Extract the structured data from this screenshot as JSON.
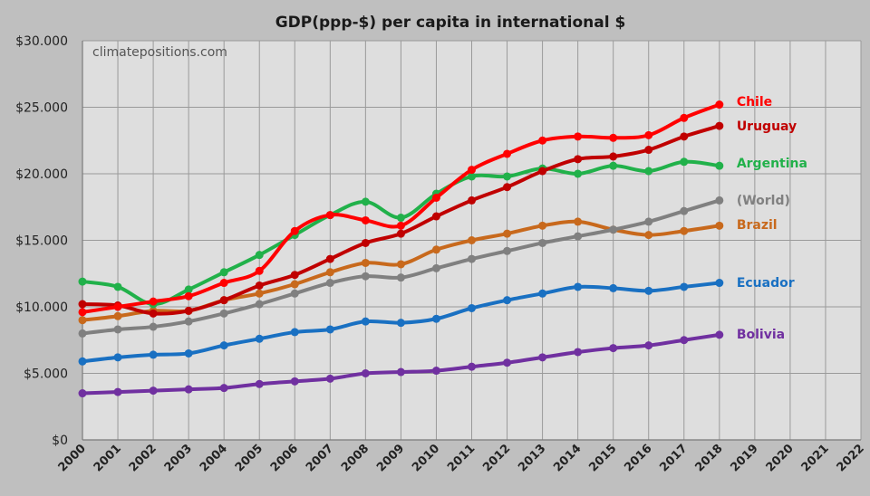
{
  "chart_data": {
    "type": "line",
    "title": "GDP(ppp-$) per capita in international $",
    "watermark": "climatepositions.com",
    "xlabel": "",
    "ylabel": "",
    "ylim": [
      0,
      30000
    ],
    "y_tick_labels": [
      "$0",
      "$5.000",
      "$10.000",
      "$15.000",
      "$20.000",
      "$25.000",
      "$30.000"
    ],
    "y_tick_values": [
      0,
      5000,
      10000,
      15000,
      20000,
      25000,
      30000
    ],
    "x_categories": [
      "2000",
      "2001",
      "2002",
      "2003",
      "2004",
      "2005",
      "2006",
      "2007",
      "2008",
      "2009",
      "2010",
      "2011",
      "2012",
      "2013",
      "2014",
      "2015",
      "2016",
      "2017",
      "2018",
      "2019",
      "2020",
      "2021",
      "2022"
    ],
    "grid": true,
    "legend": "labels at line ends (right)",
    "series": [
      {
        "name": "Chile",
        "color": "#ff0000",
        "values": [
          9600,
          10000,
          10400,
          10800,
          11800,
          12700,
          15700,
          16900,
          16500,
          16100,
          18200,
          20300,
          21500,
          22500,
          22800,
          22700,
          22900,
          24200,
          25200
        ]
      },
      {
        "name": "Uruguay",
        "color": "#c00000",
        "values": [
          10200,
          10100,
          9500,
          9700,
          10500,
          11600,
          12400,
          13600,
          14800,
          15500,
          16800,
          18000,
          19000,
          20200,
          21100,
          21300,
          21800,
          22800,
          23600
        ]
      },
      {
        "name": "Argentina",
        "color": "#21b14a",
        "values": [
          11900,
          11500,
          10200,
          11300,
          12600,
          13900,
          15400,
          16900,
          17900,
          16700,
          18500,
          19800,
          19800,
          20400,
          20000,
          20600,
          20200,
          20900,
          20600
        ]
      },
      {
        "name": "(World)",
        "color": "#808080",
        "values": [
          8000,
          8300,
          8500,
          8900,
          9500,
          10200,
          11000,
          11800,
          12300,
          12200,
          12900,
          13600,
          14200,
          14800,
          15300,
          15800,
          16400,
          17200,
          18000
        ]
      },
      {
        "name": "Brazil",
        "color": "#c8691c",
        "values": [
          9000,
          9300,
          9700,
          9700,
          10500,
          11000,
          11700,
          12600,
          13300,
          13200,
          14300,
          15000,
          15500,
          16100,
          16400,
          15800,
          15400,
          15700,
          16100
        ]
      },
      {
        "name": "Ecuador",
        "color": "#1970c2",
        "values": [
          5900,
          6200,
          6400,
          6500,
          7100,
          7600,
          8100,
          8300,
          8900,
          8800,
          9100,
          9900,
          10500,
          11000,
          11500,
          11400,
          11200,
          11500,
          11800
        ]
      },
      {
        "name": "Bolivia",
        "color": "#7030a0",
        "values": [
          3500,
          3600,
          3700,
          3800,
          3900,
          4200,
          4400,
          4600,
          5000,
          5100,
          5200,
          5500,
          5800,
          6200,
          6600,
          6900,
          7100,
          7500,
          7900
        ]
      }
    ]
  }
}
